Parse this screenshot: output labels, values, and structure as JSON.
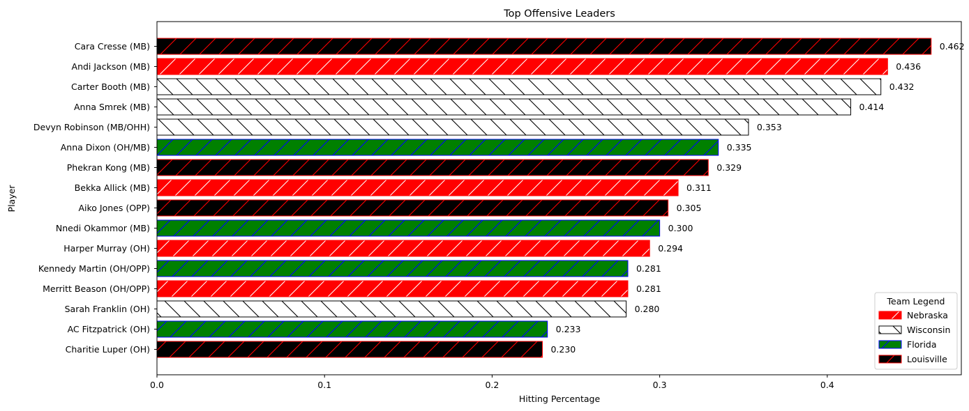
{
  "chart_data": {
    "type": "bar",
    "orientation": "horizontal",
    "title": "Top Offensive Leaders",
    "xlabel": "Hitting Percentage",
    "ylabel": "Player",
    "xlim": [
      0,
      0.48
    ],
    "xticks": [
      0,
      0.1,
      0.2,
      0.3,
      0.4
    ],
    "xtick_labels": [
      "0.0",
      "0.1",
      "0.2",
      "0.3",
      "0.4"
    ],
    "grid": false,
    "legend": {
      "title": "Team Legend",
      "placement": "lower-right",
      "entries": [
        "Nebraska",
        "Wisconsin",
        "Florida",
        "Louisville"
      ]
    },
    "teams": {
      "Nebraska": {
        "fill": "#ff0000",
        "edge": "#ff0000",
        "hatch": "#ffffff"
      },
      "Wisconsin": {
        "fill": "#ffffff",
        "edge": "#000000",
        "hatch": "#000000"
      },
      "Florida": {
        "fill": "#008000",
        "edge": "#0000ff",
        "hatch": "#0000ff"
      },
      "Louisville": {
        "fill": "#000000",
        "edge": "#ff0000",
        "hatch": "#ff0000"
      }
    },
    "players": [
      {
        "name": "Cara Cresse (MB)",
        "team": "Louisville",
        "value": 0.462,
        "label": "0.462"
      },
      {
        "name": "Andi Jackson (MB)",
        "team": "Nebraska",
        "value": 0.436,
        "label": "0.436"
      },
      {
        "name": "Carter Booth (MB)",
        "team": "Wisconsin",
        "value": 0.432,
        "label": "0.432"
      },
      {
        "name": "Anna Smrek (MB)",
        "team": "Wisconsin",
        "value": 0.414,
        "label": "0.414"
      },
      {
        "name": "Devyn Robinson (MB/OHH)",
        "team": "Wisconsin",
        "value": 0.353,
        "label": "0.353"
      },
      {
        "name": "Anna Dixon (OH/MB)",
        "team": "Florida",
        "value": 0.335,
        "label": "0.335"
      },
      {
        "name": "Phekran Kong (MB)",
        "team": "Louisville",
        "value": 0.329,
        "label": "0.329"
      },
      {
        "name": "Bekka Allick (MB)",
        "team": "Nebraska",
        "value": 0.311,
        "label": "0.311"
      },
      {
        "name": "Aiko Jones (OPP)",
        "team": "Louisville",
        "value": 0.305,
        "label": "0.305"
      },
      {
        "name": "Nnedi Okammor (MB)",
        "team": "Florida",
        "value": 0.3,
        "label": "0.300"
      },
      {
        "name": "Harper Murray (OH)",
        "team": "Nebraska",
        "value": 0.294,
        "label": "0.294"
      },
      {
        "name": "Kennedy Martin (OH/OPP)",
        "team": "Florida",
        "value": 0.281,
        "label": "0.281"
      },
      {
        "name": "Merritt Beason (OH/OPP)",
        "team": "Nebraska",
        "value": 0.281,
        "label": "0.281"
      },
      {
        "name": "Sarah Franklin (OH)",
        "team": "Wisconsin",
        "value": 0.28,
        "label": "0.280"
      },
      {
        "name": "AC Fitzpatrick (OH)",
        "team": "Florida",
        "value": 0.233,
        "label": "0.233"
      },
      {
        "name": "Charitie Luper (OH)",
        "team": "Louisville",
        "value": 0.23,
        "label": "0.230"
      }
    ]
  }
}
